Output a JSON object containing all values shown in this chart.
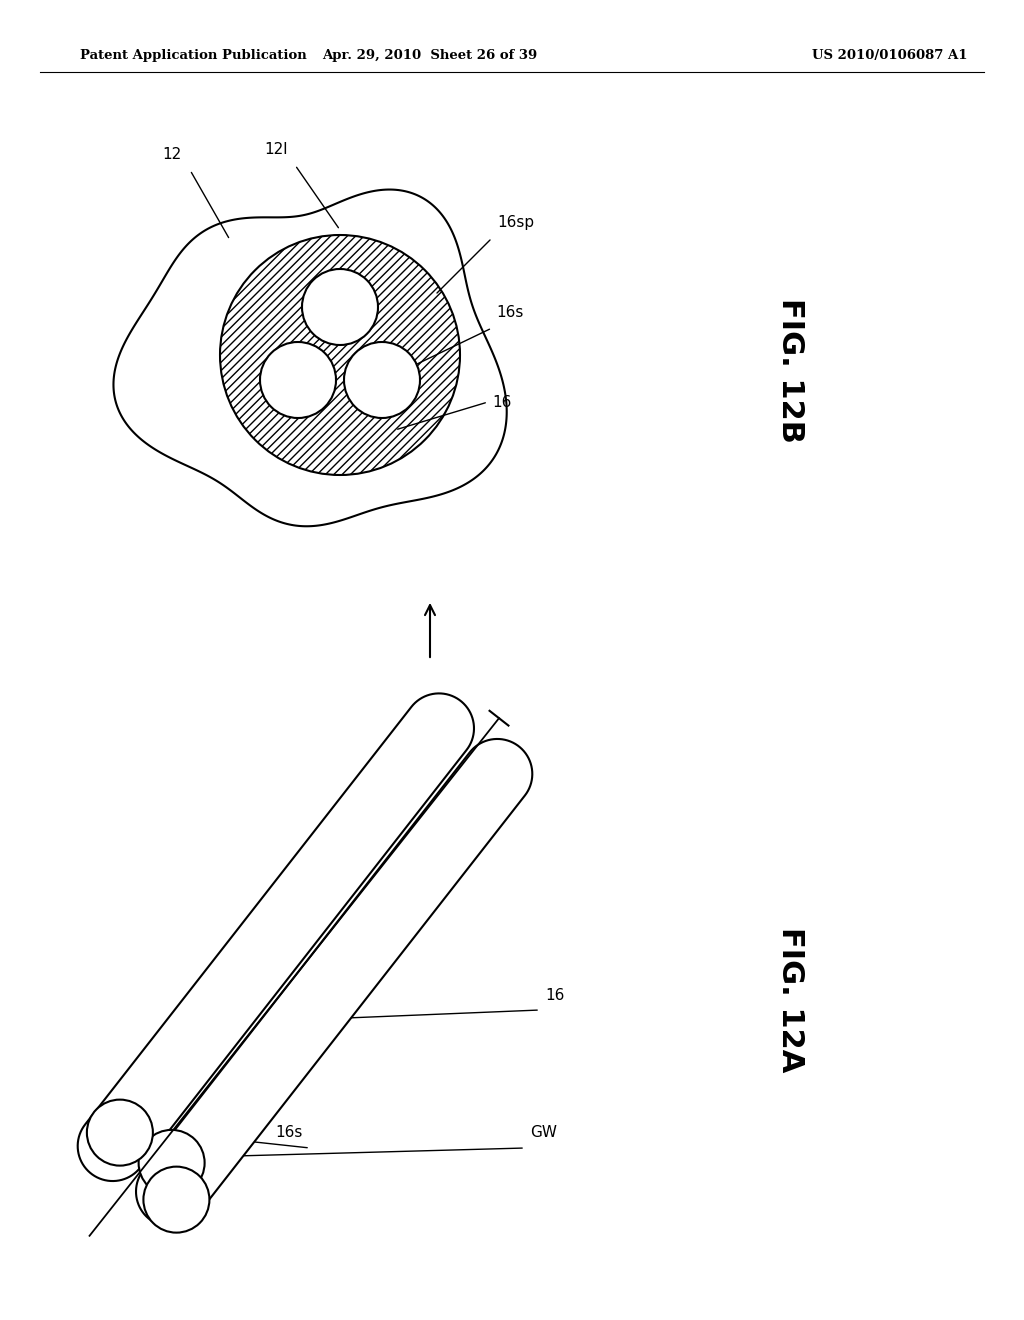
{
  "header_left": "Patent Application Publication",
  "header_center": "Apr. 29, 2010  Sheet 26 of 39",
  "header_right": "US 2010/0106087 A1",
  "fig_label_12B": "FIG. 12B",
  "fig_label_12A": "FIG. 12A",
  "background_color": "#ffffff",
  "line_color": "#000000",
  "line_width": 1.5
}
